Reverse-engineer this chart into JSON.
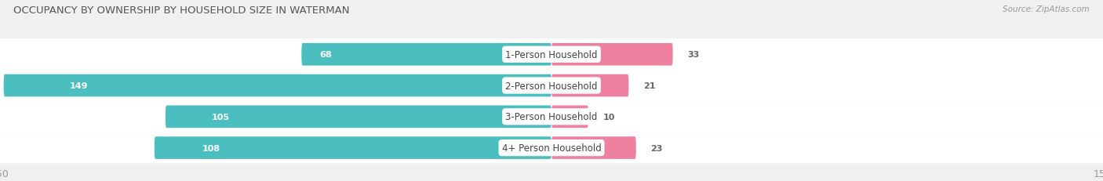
{
  "title": "OCCUPANCY BY OWNERSHIP BY HOUSEHOLD SIZE IN WATERMAN",
  "source": "Source: ZipAtlas.com",
  "categories": [
    "1-Person Household",
    "2-Person Household",
    "3-Person Household",
    "4+ Person Household"
  ],
  "owner_values": [
    68,
    149,
    105,
    108
  ],
  "renter_values": [
    33,
    21,
    10,
    23
  ],
  "owner_color": "#4BBFBF",
  "renter_color": "#F080A0",
  "background_color": "#f0f0f0",
  "bar_bg_color": "#e0e0e0",
  "row_bg_color": "#ffffff",
  "axis_max": 150,
  "title_fontsize": 9.5,
  "label_fontsize": 8.5,
  "value_fontsize": 8,
  "tick_fontsize": 9,
  "legend_fontsize": 9,
  "source_fontsize": 7.5
}
